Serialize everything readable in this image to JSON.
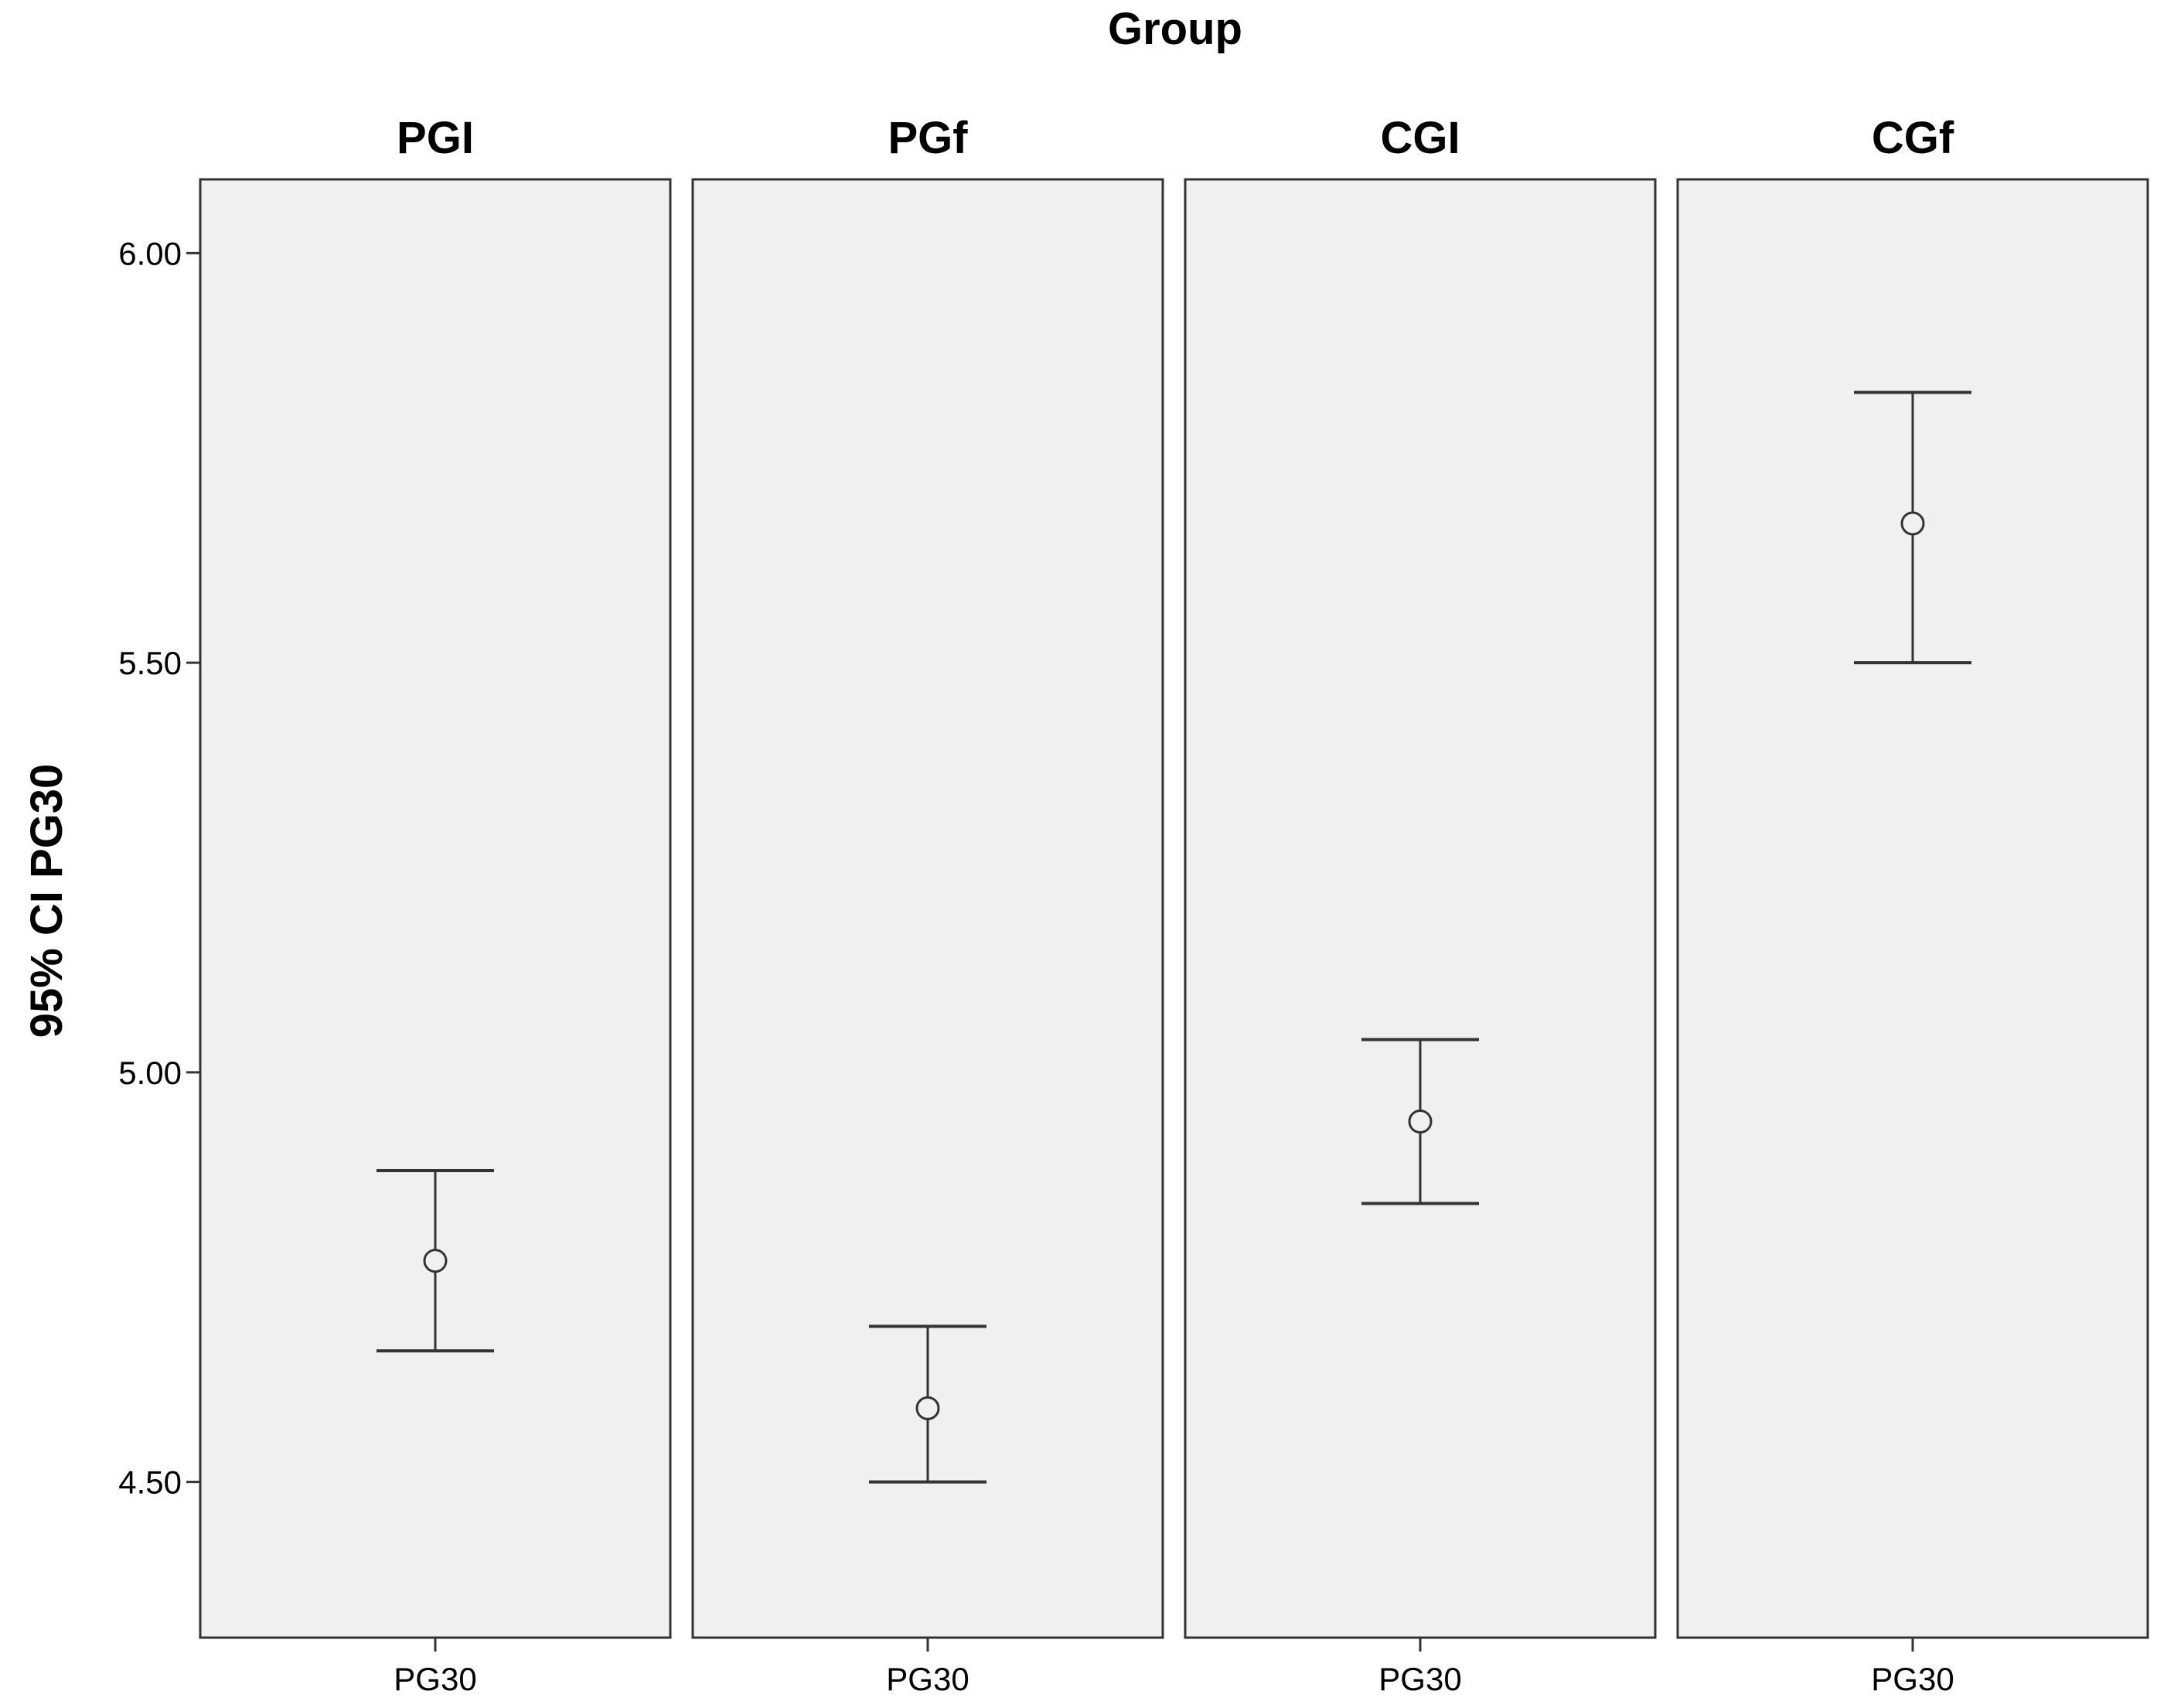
{
  "chart_data": {
    "type": "errorbar",
    "facet_title": "Group",
    "ylabel": "95% CI PG30",
    "ylim": [
      4.31,
      6.09
    ],
    "yticks": [
      {
        "value": 4.5,
        "label": "4.50"
      },
      {
        "value": 5.0,
        "label": "5.00"
      },
      {
        "value": 5.5,
        "label": "5.50"
      },
      {
        "value": 6.0,
        "label": "6.00"
      }
    ],
    "grid": false,
    "panels": [
      {
        "name": "PGI",
        "category": "PG30",
        "mean": 4.77,
        "lower": 4.66,
        "upper": 4.88
      },
      {
        "name": "PGf",
        "category": "PG30",
        "mean": 4.59,
        "lower": 4.5,
        "upper": 4.69
      },
      {
        "name": "CGI",
        "category": "PG30",
        "mean": 4.94,
        "lower": 4.84,
        "upper": 5.04
      },
      {
        "name": "CGf",
        "category": "PG30",
        "mean": 5.67,
        "lower": 5.5,
        "upper": 5.83
      }
    ],
    "colors": {
      "panel_background": "#f0f0f0",
      "frame": "#333333",
      "marker": "#333333"
    }
  }
}
